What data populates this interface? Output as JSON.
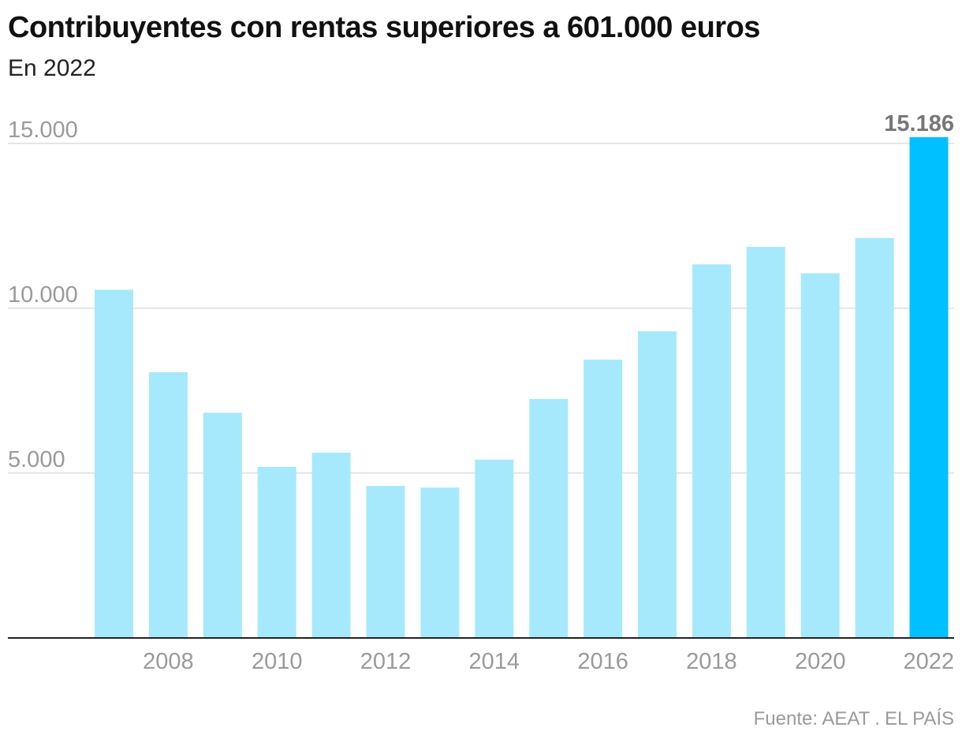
{
  "header": {
    "title": "Contribuyentes con rentas superiores a 601.000 euros",
    "subtitle": "En 2022"
  },
  "footer": {
    "source": "Fuente: AEAT",
    "brand": "EL PAÍS"
  },
  "colors": {
    "bar": "#a6e9fc",
    "highlight_bar": "#00c0ff",
    "gridline": "#dddddd",
    "axis": "#222222",
    "tick_label": "#9a9a9a",
    "highlight_label": "#777777"
  },
  "chart_data": {
    "type": "bar",
    "title": "Contribuyentes con rentas superiores a 601.000 euros",
    "subtitle": "En 2022",
    "xlabel": "",
    "ylabel": "",
    "categories": [
      "2007",
      "2008",
      "2009",
      "2010",
      "2011",
      "2012",
      "2013",
      "2014",
      "2015",
      "2016",
      "2017",
      "2018",
      "2019",
      "2020",
      "2021",
      "2022"
    ],
    "values": [
      10560,
      8060,
      6830,
      5190,
      5620,
      4610,
      4560,
      5410,
      7250,
      8440,
      9300,
      11330,
      11860,
      11060,
      12130,
      15186
    ],
    "highlight_index": 15,
    "highlight_label": "15.186",
    "x_tick_labels": [
      "2008",
      "2010",
      "2012",
      "2014",
      "2016",
      "2018",
      "2020",
      "2022"
    ],
    "y_ticks": [
      5000,
      10000,
      15000
    ],
    "y_tick_labels": [
      "5.000",
      "10.000",
      "15.000"
    ],
    "ylim": [
      0,
      15186
    ],
    "grid": true,
    "legend": "none"
  }
}
